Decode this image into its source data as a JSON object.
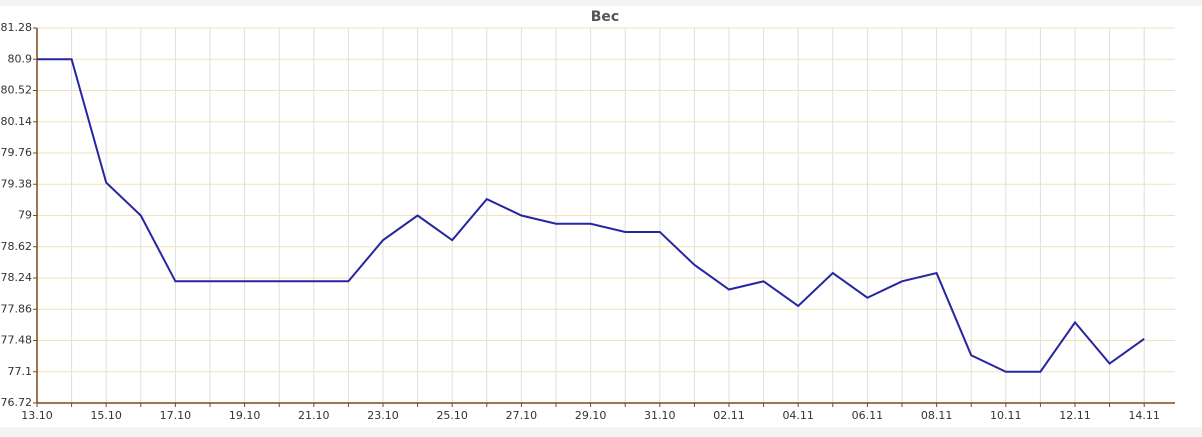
{
  "chart_data": {
    "type": "line",
    "title": "Вес",
    "categories": [
      "13.10",
      null,
      "15.10",
      null,
      "17.10",
      null,
      "19.10",
      null,
      "21.10",
      null,
      "23.10",
      null,
      "25.10",
      null,
      "27.10",
      null,
      "29.10",
      null,
      "31.10",
      null,
      "02.11",
      null,
      "04.11",
      null,
      "06.11",
      null,
      "08.11",
      null,
      "10.11",
      null,
      "12.11",
      null,
      "14.11"
    ],
    "series": [
      {
        "name": "Вес",
        "color": "#2626a0",
        "values": [
          80.9,
          80.9,
          79.4,
          79.0,
          78.2,
          78.2,
          78.2,
          78.2,
          78.2,
          78.2,
          78.7,
          79.0,
          78.7,
          79.2,
          79.0,
          78.9,
          78.9,
          78.8,
          78.8,
          78.4,
          78.1,
          78.2,
          77.9,
          78.3,
          78.0,
          78.2,
          78.3,
          77.3,
          77.1,
          77.1,
          77.7,
          77.2,
          77.5
        ]
      }
    ],
    "ylim": [
      76.72,
      81.28
    ],
    "yticks": [
      76.72,
      77.1,
      77.48,
      77.86,
      78.24,
      78.62,
      79,
      79.38,
      79.76,
      80.14,
      80.52,
      80.9,
      81.28
    ],
    "grid": true
  }
}
